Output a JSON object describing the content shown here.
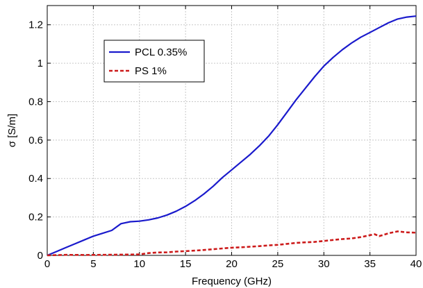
{
  "chart_data": {
    "type": "line",
    "title": "",
    "xlabel": "Frequency (GHz)",
    "ylabel": "σ [S/m]",
    "xlim": [
      0,
      40
    ],
    "ylim": [
      0,
      1.3
    ],
    "xticks": [
      0,
      5,
      10,
      15,
      20,
      25,
      30,
      35,
      40
    ],
    "xtick_labels": [
      "0",
      "5",
      "10",
      "15",
      "20",
      "25",
      "30",
      "35",
      "40"
    ],
    "yticks": [
      0,
      0.2,
      0.4,
      0.6,
      0.8,
      1.0,
      1.2
    ],
    "ytick_labels": [
      "0",
      "0.2",
      "0.4",
      "0.6",
      "0.8",
      "1",
      "1.2"
    ],
    "grid": true,
    "legend_position": "upper-left",
    "series": [
      {
        "name": "PCL 0.35%",
        "color": "#1a1acc",
        "style": "solid",
        "x": [
          0,
          1,
          2,
          3,
          4,
          5,
          6,
          7,
          8,
          9,
          10,
          11,
          12,
          13,
          14,
          15,
          16,
          17,
          18,
          19,
          20,
          21,
          22,
          23,
          24,
          25,
          26,
          27,
          28,
          29,
          30,
          31,
          32,
          33,
          34,
          35,
          36,
          37,
          38,
          39,
          40
        ],
        "y": [
          0,
          0.02,
          0.04,
          0.06,
          0.08,
          0.1,
          0.115,
          0.13,
          0.165,
          0.175,
          0.178,
          0.185,
          0.195,
          0.21,
          0.23,
          0.255,
          0.285,
          0.32,
          0.36,
          0.405,
          0.445,
          0.485,
          0.525,
          0.57,
          0.62,
          0.68,
          0.745,
          0.81,
          0.87,
          0.93,
          0.985,
          1.03,
          1.07,
          1.105,
          1.135,
          1.16,
          1.185,
          1.21,
          1.23,
          1.24,
          1.245
        ]
      },
      {
        "name": "PS 1%",
        "color": "#cc1a1a",
        "style": "dashed",
        "x": [
          0,
          2,
          4,
          6,
          8,
          10,
          11,
          12,
          13,
          14,
          15,
          16,
          17,
          18,
          19,
          20,
          21,
          22,
          23,
          24,
          25,
          26,
          27,
          28,
          29,
          30,
          31,
          32,
          33,
          34,
          35,
          35.5,
          36,
          37,
          38,
          39,
          40
        ],
        "y": [
          0,
          0.003,
          0.002,
          0.003,
          0.004,
          0.005,
          0.012,
          0.015,
          0.016,
          0.02,
          0.022,
          0.025,
          0.028,
          0.032,
          0.036,
          0.04,
          0.042,
          0.045,
          0.048,
          0.052,
          0.055,
          0.06,
          0.065,
          0.068,
          0.07,
          0.075,
          0.08,
          0.085,
          0.088,
          0.095,
          0.105,
          0.11,
          0.1,
          0.115,
          0.125,
          0.12,
          0.118
        ]
      }
    ]
  }
}
